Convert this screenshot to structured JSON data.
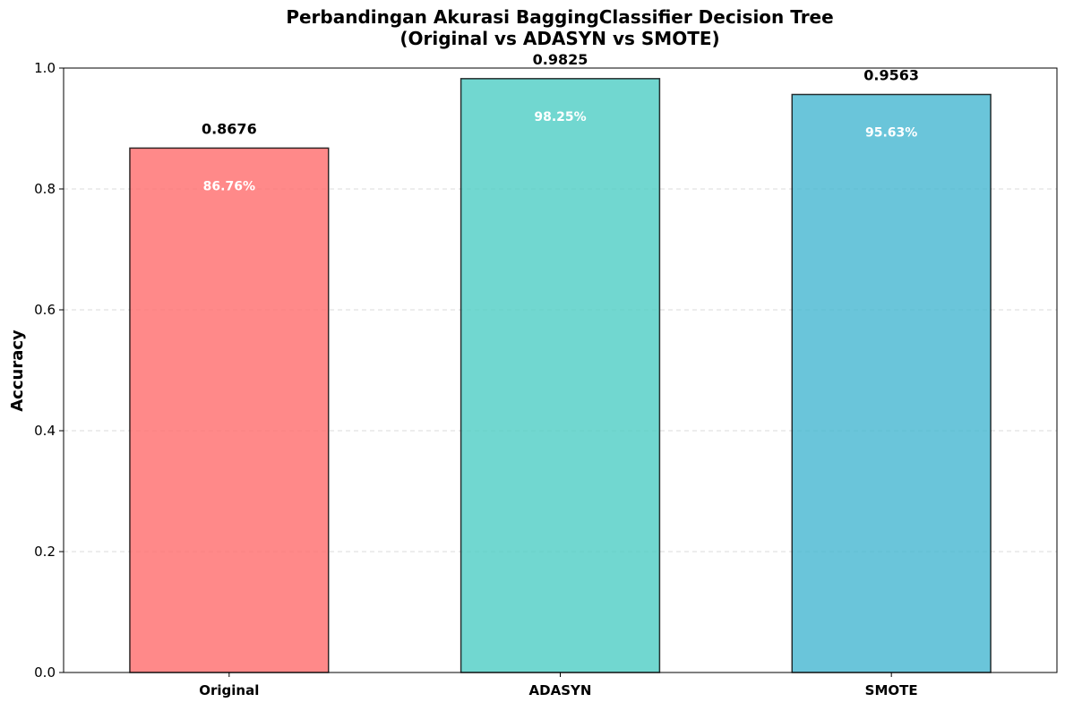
{
  "chart_data": {
    "type": "bar",
    "title_line1": "Perbandingan Akurasi BaggingClassifier Decision Tree",
    "title_line2": "(Original vs ADASYN vs SMOTE)",
    "xlabel": "",
    "ylabel": "Accuracy",
    "ylim": [
      0,
      1.0
    ],
    "yticks": [
      "0.0",
      "0.2",
      "0.4",
      "0.6",
      "0.8",
      "1.0"
    ],
    "grid": "y-dashed",
    "categories": [
      "Original",
      "ADASYN",
      "SMOTE"
    ],
    "values": [
      0.8676,
      0.9825,
      0.9563
    ],
    "value_labels": [
      "0.8676",
      "0.9825",
      "0.9563"
    ],
    "percent_labels": [
      "86.76%",
      "98.25%",
      "95.63%"
    ],
    "colors": [
      "#ff6b6b",
      "#4ecdc4",
      "#45b7d1"
    ]
  }
}
